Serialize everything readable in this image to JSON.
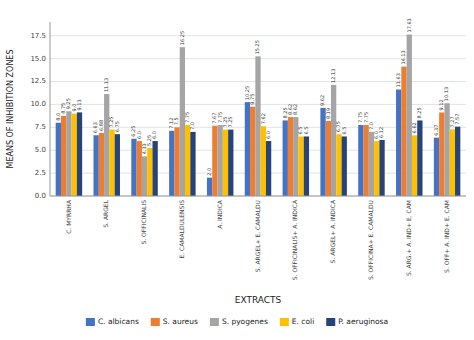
{
  "chart_data": {
    "type": "bar",
    "categories": [
      "C. MYRRHA",
      "S. ARGEL",
      "S. OFFICINALIS",
      "E. CAMALDULENSIS",
      "A. INDICA",
      "S. ARGEL+ E. CAMALDU",
      "S. OFFICINALIS+ A. INDICA",
      "S. ARGEL+ A. INDICA",
      "S. OFFICINA+ E. CAMALDU",
      "S. ARG.+ A. IND+ E. CAM",
      "S. OFF+ A. IND+ E. CAM"
    ],
    "series": [
      {
        "name": "C. albicans",
        "color": "#4472C4",
        "values": [
          8.0,
          6.63,
          6.25,
          7.12,
          2.0,
          10.25,
          8.25,
          9.62,
          7.75,
          11.63,
          6.37
        ],
        "value_labels": [
          "8.0",
          "6.63",
          "6.25",
          "7.12",
          "2.0",
          "10.25",
          "8.25",
          "9.62",
          "7.75",
          "11.63",
          "6.37"
        ]
      },
      {
        "name": "S. aureus",
        "color": "#ED7D31",
        "values": [
          8.75,
          6.88,
          6.0,
          7.5,
          7.67,
          9.75,
          8.62,
          8.19,
          7.75,
          14.13,
          9.12
        ],
        "value_labels": [
          "8.75",
          "6.88",
          "6.0",
          "7.5",
          "7.67",
          "9.75",
          "8.62",
          "8.19",
          "7.75",
          "14.13",
          "9.12"
        ]
      },
      {
        "name": "S. pyogenes",
        "color": "#A5A5A5",
        "values": [
          9.25,
          11.13,
          4.33,
          16.25,
          7.75,
          15.25,
          8.62,
          12.13,
          7.0,
          17.63,
          10.13
        ],
        "value_labels": [
          "9.25",
          "11.13",
          "4.33",
          "16.25",
          "7.75",
          "15.25",
          "8.62",
          "12.13",
          "7.0",
          "17.63",
          "10.13"
        ]
      },
      {
        "name": "E. coli",
        "color": "#FFC000",
        "values": [
          9.0,
          7.25,
          5.25,
          7.75,
          7.25,
          7.62,
          6.5,
          6.75,
          6.0,
          6.62,
          7.27
        ],
        "value_labels": [
          "9.0",
          "7.25",
          "5.25",
          "7.75",
          "7.25",
          "7.62",
          "6.5",
          "6.75",
          "6.0",
          "6.62",
          "7.27"
        ]
      },
      {
        "name": "P. aeruginosa",
        "color": "#264478",
        "values": [
          9.13,
          6.75,
          6.0,
          7.0,
          7.25,
          6.0,
          6.5,
          6.5,
          6.12,
          8.25,
          7.57
        ],
        "value_labels": [
          "9.13",
          "6.75",
          "6.0",
          "7.0",
          "7.25",
          "6.0",
          "6.5",
          "6.5",
          "6.12",
          "8.25",
          "7.57"
        ]
      }
    ],
    "xlabel": "EXTRACTS",
    "ylabel": "MEANS OF INHIBITION ZONES",
    "ylim": [
      0,
      19
    ],
    "yticks": [
      {
        "value": 0,
        "label": "0.0"
      },
      2.5,
      {
        "value": 5,
        "label": "5.0"
      },
      7.5,
      {
        "value": 10,
        "label": "10.0"
      },
      12.5,
      {
        "value": 15,
        "label": "15.0"
      },
      17.5
    ],
    "grid": true,
    "data_labels": true,
    "legend": "bottom"
  }
}
